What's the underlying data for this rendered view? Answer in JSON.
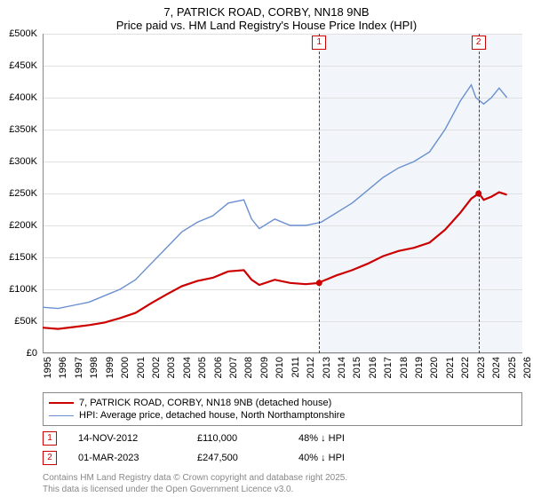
{
  "title": {
    "line1": "7, PATRICK ROAD, CORBY, NN18 9NB",
    "line2": "Price paid vs. HM Land Registry's House Price Index (HPI)"
  },
  "chart": {
    "type": "line",
    "background_color": "#ffffff",
    "grid_color": "#e0e0e0",
    "axis_color": "#888888",
    "shade_color": "#e8eef7",
    "x_min": 1995,
    "x_max": 2026,
    "x_ticks": [
      1995,
      1996,
      1997,
      1998,
      1999,
      2000,
      2001,
      2002,
      2003,
      2004,
      2005,
      2006,
      2007,
      2008,
      2009,
      2010,
      2011,
      2012,
      2013,
      2014,
      2015,
      2016,
      2017,
      2018,
      2019,
      2020,
      2021,
      2022,
      2023,
      2024,
      2025,
      2026
    ],
    "y_min": 0,
    "y_max": 500,
    "y_ticks": [
      0,
      50,
      100,
      150,
      200,
      250,
      300,
      350,
      400,
      450,
      500
    ],
    "y_tick_prefix": "£",
    "y_tick_suffix": "K",
    "series": [
      {
        "name": "hpi",
        "label": "HPI: Average price, detached house, North Northamptonshire",
        "color": "#6a8fd0",
        "width": 1.4,
        "points": [
          [
            1995,
            72
          ],
          [
            1996,
            70
          ],
          [
            1997,
            75
          ],
          [
            1998,
            80
          ],
          [
            1999,
            90
          ],
          [
            2000,
            100
          ],
          [
            2001,
            115
          ],
          [
            2002,
            140
          ],
          [
            2003,
            165
          ],
          [
            2004,
            190
          ],
          [
            2005,
            205
          ],
          [
            2006,
            215
          ],
          [
            2007,
            235
          ],
          [
            2008,
            240
          ],
          [
            2008.5,
            210
          ],
          [
            2009,
            195
          ],
          [
            2010,
            210
          ],
          [
            2011,
            200
          ],
          [
            2012,
            200
          ],
          [
            2013,
            205
          ],
          [
            2014,
            220
          ],
          [
            2015,
            235
          ],
          [
            2016,
            255
          ],
          [
            2017,
            275
          ],
          [
            2018,
            290
          ],
          [
            2019,
            300
          ],
          [
            2020,
            315
          ],
          [
            2021,
            350
          ],
          [
            2022,
            395
          ],
          [
            2022.7,
            420
          ],
          [
            2023,
            400
          ],
          [
            2023.5,
            390
          ],
          [
            2024,
            400
          ],
          [
            2024.5,
            415
          ],
          [
            2025,
            400
          ]
        ]
      },
      {
        "name": "price_paid",
        "label": "7, PATRICK ROAD, CORBY, NN18 9NB (detached house)",
        "color": "#cc0000",
        "width": 2.2,
        "points": [
          [
            1995,
            40
          ],
          [
            1996,
            38
          ],
          [
            1997,
            41
          ],
          [
            1998,
            44
          ],
          [
            1999,
            48
          ],
          [
            2000,
            55
          ],
          [
            2001,
            63
          ],
          [
            2002,
            78
          ],
          [
            2003,
            92
          ],
          [
            2004,
            105
          ],
          [
            2005,
            113
          ],
          [
            2006,
            118
          ],
          [
            2007,
            128
          ],
          [
            2008,
            130
          ],
          [
            2008.5,
            115
          ],
          [
            2009,
            107
          ],
          [
            2010,
            115
          ],
          [
            2011,
            110
          ],
          [
            2012,
            108
          ],
          [
            2012.9,
            110
          ],
          [
            2013,
            112
          ],
          [
            2014,
            122
          ],
          [
            2015,
            130
          ],
          [
            2016,
            140
          ],
          [
            2017,
            152
          ],
          [
            2018,
            160
          ],
          [
            2019,
            165
          ],
          [
            2020,
            173
          ],
          [
            2021,
            193
          ],
          [
            2022,
            220
          ],
          [
            2022.7,
            242
          ],
          [
            2023,
            247
          ],
          [
            2023.2,
            250
          ],
          [
            2023.5,
            240
          ],
          [
            2024,
            245
          ],
          [
            2024.5,
            252
          ],
          [
            2025,
            248
          ]
        ]
      }
    ],
    "sale_markers": [
      {
        "num": "1",
        "x": 2012.87,
        "color": "#cc0000"
      },
      {
        "num": "2",
        "x": 2023.17,
        "color": "#cc0000"
      }
    ],
    "shade_from": 2012.87,
    "shade_to": 2026
  },
  "legend": {
    "items": [
      {
        "label_key": "chart.series.1.label",
        "color": "#cc0000",
        "width": 2.2
      },
      {
        "label_key": "chart.series.0.label",
        "color": "#6a8fd0",
        "width": 1.4
      }
    ]
  },
  "sales": [
    {
      "num": "1",
      "date": "14-NOV-2012",
      "price": "£110,000",
      "hpi": "48% ↓ HPI"
    },
    {
      "num": "2",
      "date": "01-MAR-2023",
      "price": "£247,500",
      "hpi": "40% ↓ HPI"
    }
  ],
  "footer": {
    "line1": "Contains HM Land Registry data © Crown copyright and database right 2025.",
    "line2": "This data is licensed under the Open Government Licence v3.0."
  }
}
